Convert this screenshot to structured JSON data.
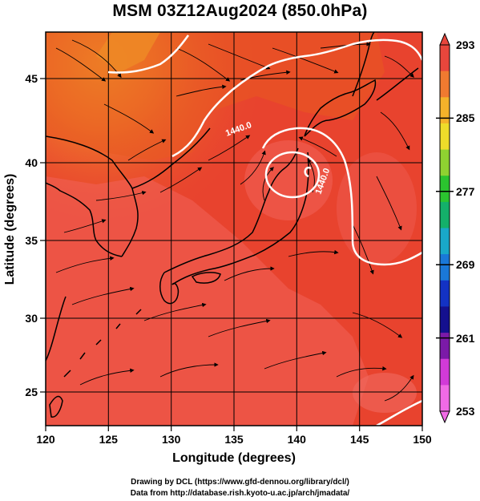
{
  "title": "MSM 03Z12Aug2024 (850.0hPa)",
  "axes": {
    "xlabel": "Longitude (degrees)",
    "ylabel": "Latitude  (degrees)",
    "xticks": [
      "120",
      "125",
      "130",
      "135",
      "140",
      "145",
      "150"
    ],
    "yticks": [
      "25",
      "30",
      "35",
      "40",
      "45"
    ]
  },
  "colorbar": {
    "labels": [
      "293",
      "285",
      "277",
      "269",
      "261",
      "253"
    ],
    "colors_top_to_bottom": [
      "#e8463c",
      "#f07a30",
      "#f4b22a",
      "#eedc2a",
      "#8fd231",
      "#2bc42f",
      "#14b06a",
      "#19a8c8",
      "#1a78d8",
      "#1332c4",
      "#14108e",
      "#7b1aa8",
      "#d23ad8",
      "#f06ae6"
    ]
  },
  "contours": [
    {
      "label": "1440.0"
    },
    {
      "label": "1440.0"
    }
  ],
  "credits": {
    "line1": "Drawing by DCL (https://www.gfd-dennou.org/library/dcl/)",
    "line2": "Data from http://database.rish.kyoto-u.ac.jp/arch/jmadata/"
  },
  "colors": {
    "field_main": "#e8402c",
    "field_warm": "#f07a2c",
    "field_light": "#f06a60",
    "contour": "#ffffff",
    "coast": "#000000"
  }
}
